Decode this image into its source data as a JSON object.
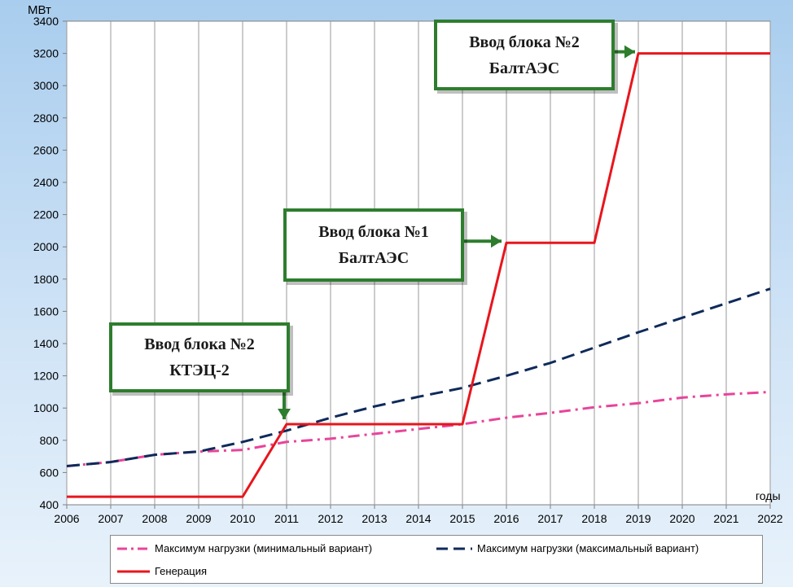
{
  "chart_data": {
    "type": "line",
    "ylabel": "МВт",
    "xlabel": "годы",
    "ylim": [
      400,
      3400
    ],
    "xlim": [
      2006,
      2022
    ],
    "yticks": [
      400,
      600,
      800,
      1000,
      1200,
      1400,
      1600,
      1800,
      2000,
      2200,
      2400,
      2600,
      2800,
      3000,
      3200,
      3400
    ],
    "xticks": [
      2006,
      2007,
      2008,
      2009,
      2010,
      2011,
      2012,
      2013,
      2014,
      2015,
      2016,
      2017,
      2018,
      2019,
      2020,
      2021,
      2022
    ],
    "grid": "vertical",
    "legend_placement": "bottom",
    "series": [
      {
        "name": "Максимум нагрузки (минимальный вариант)",
        "style": "dashdot",
        "color": "#e8449a",
        "x": [
          2006,
          2007,
          2008,
          2009,
          2010,
          2011,
          2012,
          2013,
          2014,
          2015,
          2016,
          2017,
          2018,
          2019,
          2020,
          2021,
          2022
        ],
        "y": [
          640,
          665,
          710,
          730,
          740,
          790,
          810,
          840,
          870,
          900,
          940,
          970,
          1005,
          1030,
          1065,
          1085,
          1100
        ]
      },
      {
        "name": "Максимум нагрузки (максимальный вариант)",
        "style": "dashed",
        "color": "#0f2a5a",
        "x": [
          2006,
          2007,
          2008,
          2009,
          2010,
          2011,
          2012,
          2013,
          2014,
          2015,
          2016,
          2017,
          2018,
          2019,
          2020,
          2021,
          2022
        ],
        "y": [
          640,
          665,
          710,
          730,
          790,
          860,
          940,
          1010,
          1070,
          1125,
          1200,
          1280,
          1375,
          1470,
          1560,
          1650,
          1740
        ]
      },
      {
        "name": "Генерация",
        "style": "solid",
        "color": "#e8151c",
        "x": [
          2006,
          2010,
          2011,
          2015,
          2016,
          2018,
          2019,
          2022
        ],
        "y": [
          450,
          450,
          900,
          900,
          2025,
          2025,
          3200,
          3200
        ]
      }
    ],
    "annotations": [
      {
        "line1": "Ввод блока №2",
        "line2": "КТЭЦ-2",
        "target_x": 2011,
        "target_y": 900
      },
      {
        "line1": "Ввод блока №1",
        "line2": "БалтАЭС",
        "target_x": 2016,
        "target_y": 2025
      },
      {
        "line1": "Ввод блока №2",
        "line2": "БалтАЭС",
        "target_x": 2019,
        "target_y": 3200
      }
    ]
  }
}
